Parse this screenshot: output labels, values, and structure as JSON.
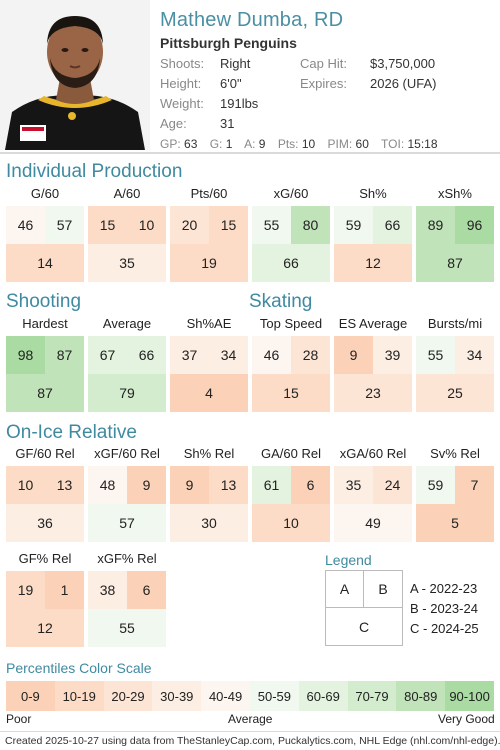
{
  "player": {
    "name": "Mathew Dumba, RD",
    "team": "Pittsburgh Penguins",
    "shoots_label": "Shoots:",
    "shoots": "Right",
    "height_label": "Height:",
    "height": "6'0\"",
    "weight_label": "Weight:",
    "weight": "191lbs",
    "age_label": "Age:",
    "age": "31",
    "caphit_label": "Cap Hit:",
    "caphit": "$3,750,000",
    "expires_label": "Expires:",
    "expires": "2026 (UFA)"
  },
  "statline": [
    {
      "k": "GP:",
      "v": "63"
    },
    {
      "k": "G:",
      "v": "1"
    },
    {
      "k": "A:",
      "v": "9"
    },
    {
      "k": "Pts:",
      "v": "10"
    },
    {
      "k": "PIM:",
      "v": "60"
    },
    {
      "k": "TOI:",
      "v": "15:18"
    }
  ],
  "sections": {
    "production": "Individual Production",
    "shooting": "Shooting",
    "skating": "Skating",
    "onice": "On-Ice Relative"
  },
  "metrics": {
    "g60": {
      "label": "G/60",
      "a": 46,
      "b": 57,
      "c": 14
    },
    "a60": {
      "label": "A/60",
      "a": 15,
      "b": 10,
      "c": 35
    },
    "pts60": {
      "label": "Pts/60",
      "a": 20,
      "b": 15,
      "c": 19
    },
    "xg60": {
      "label": "xG/60",
      "a": 55,
      "b": 80,
      "c": 66
    },
    "shpct": {
      "label": "Sh%",
      "a": 59,
      "b": 66,
      "c": 12
    },
    "xshpct": {
      "label": "xSh%",
      "a": 89,
      "b": 96,
      "c": 87
    },
    "hardest": {
      "label": "Hardest",
      "a": 98,
      "b": 87,
      "c": 87
    },
    "average": {
      "label": "Average",
      "a": 67,
      "b": 66,
      "c": 79
    },
    "shae": {
      "label": "Sh%AE",
      "a": 37,
      "b": 34,
      "c": 4
    },
    "topspeed": {
      "label": "Top Speed",
      "a": 46,
      "b": 28,
      "c": 15
    },
    "esavg": {
      "label": "ES Average",
      "a": 9,
      "b": 39,
      "c": 23
    },
    "bursts": {
      "label": "Bursts/mi",
      "a": 55,
      "b": 34,
      "c": 25
    },
    "gf60rel": {
      "label": "GF/60 Rel",
      "a": 10,
      "b": 13,
      "c": 36
    },
    "xgf60rel": {
      "label": "xGF/60 Rel",
      "a": 48,
      "b": 9,
      "c": 57
    },
    "shrel": {
      "label": "Sh% Rel",
      "a": 9,
      "b": 13,
      "c": 30
    },
    "ga60rel": {
      "label": "GA/60 Rel",
      "a": 61,
      "b": 6,
      "c": 10
    },
    "xga60rel": {
      "label": "xGA/60 Rel",
      "a": 35,
      "b": 24,
      "c": 49
    },
    "svrel": {
      "label": "Sv% Rel",
      "a": 59,
      "b": 7,
      "c": 5
    },
    "gfpctrel": {
      "label": "GF% Rel",
      "a": 19,
      "b": 1,
      "c": 12
    },
    "xgfpctrel": {
      "label": "xGF% Rel",
      "a": 38,
      "b": 6,
      "c": 55
    }
  },
  "legend": {
    "title": "Legend",
    "a": "A",
    "b": "B",
    "c": "C",
    "seasons": [
      "A - 2022-23",
      "B - 2023-24",
      "C - 2024-25"
    ]
  },
  "scale": {
    "title": "Percentiles Color Scale",
    "bins": [
      "0-9",
      "10-19",
      "20-29",
      "30-39",
      "40-49",
      "50-59",
      "60-69",
      "70-79",
      "80-89",
      "90-100"
    ],
    "colors": [
      "#fbd2b8",
      "#fcdcc6",
      "#fde5d5",
      "#fdeee4",
      "#fdf5ef",
      "#f1f8ef",
      "#e3f3df",
      "#d3ecce",
      "#c0e3b9",
      "#aadba3"
    ],
    "poor": "Poor",
    "average": "Average",
    "very_good": "Very Good"
  },
  "footer": "Created 2025-10-27 using data from TheStanleyCap.com, Puckalytics.com, NHL Edge (nhl.com/nhl-edge)."
}
